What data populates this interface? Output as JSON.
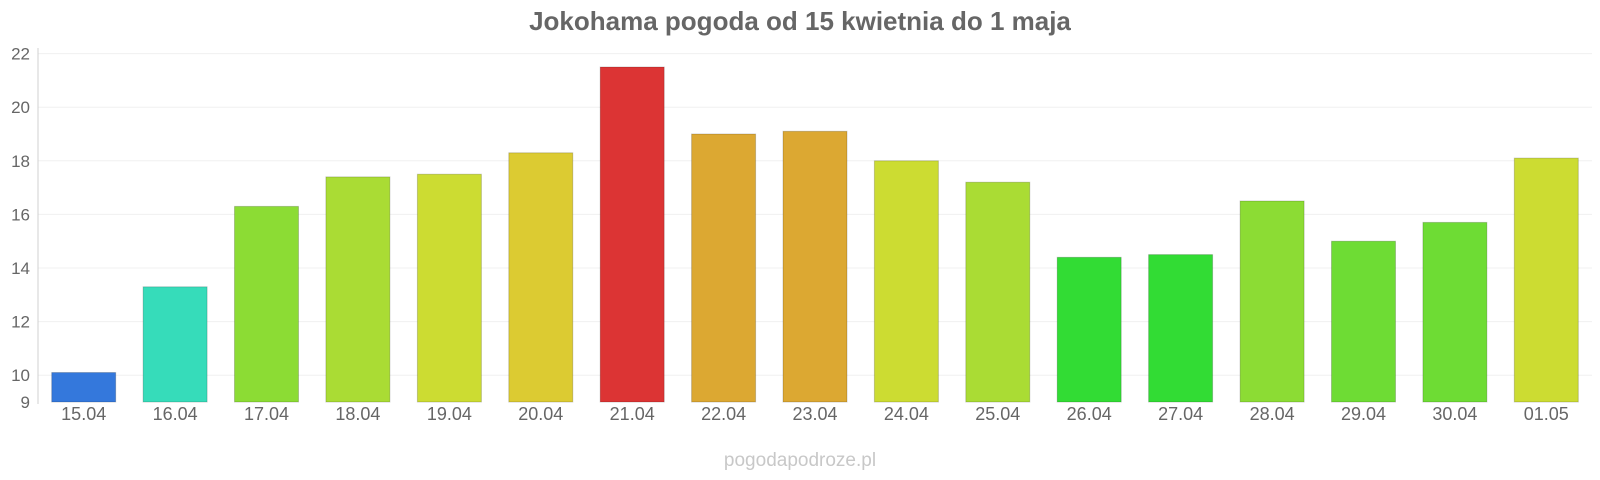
{
  "watermark": "pogodapodroze.pl",
  "chart_data": {
    "type": "bar",
    "title": "Jokohama pogoda od 15 kwietnia do 1 maja",
    "xlabel": "",
    "ylabel": "",
    "ylim": [
      9,
      22
    ],
    "yticks": [
      "9",
      "10",
      "12",
      "14",
      "16",
      "18",
      "20",
      "22"
    ],
    "grid": true,
    "categories": [
      "15.04",
      "16.04",
      "17.04",
      "18.04",
      "19.04",
      "20.04",
      "21.04",
      "22.04",
      "23.04",
      "24.04",
      "25.04",
      "26.04",
      "27.04",
      "28.04",
      "29.04",
      "30.04",
      "01.05"
    ],
    "values": [
      10.1,
      13.3,
      16.3,
      17.4,
      17.5,
      18.3,
      21.5,
      19.0,
      19.1,
      18.0,
      17.2,
      14.4,
      14.5,
      16.5,
      15.0,
      15.7,
      18.1
    ],
    "colors": [
      "#3478dc",
      "#36dcba",
      "#8cdc34",
      "#aadc34",
      "#ccdc32",
      "#dccb32",
      "#dc3434",
      "#dca832",
      "#dca832",
      "#ccdc32",
      "#aadc34",
      "#32dc34",
      "#32dc34",
      "#8cdc34",
      "#6edc34",
      "#6edc34",
      "#ccdc32"
    ]
  }
}
